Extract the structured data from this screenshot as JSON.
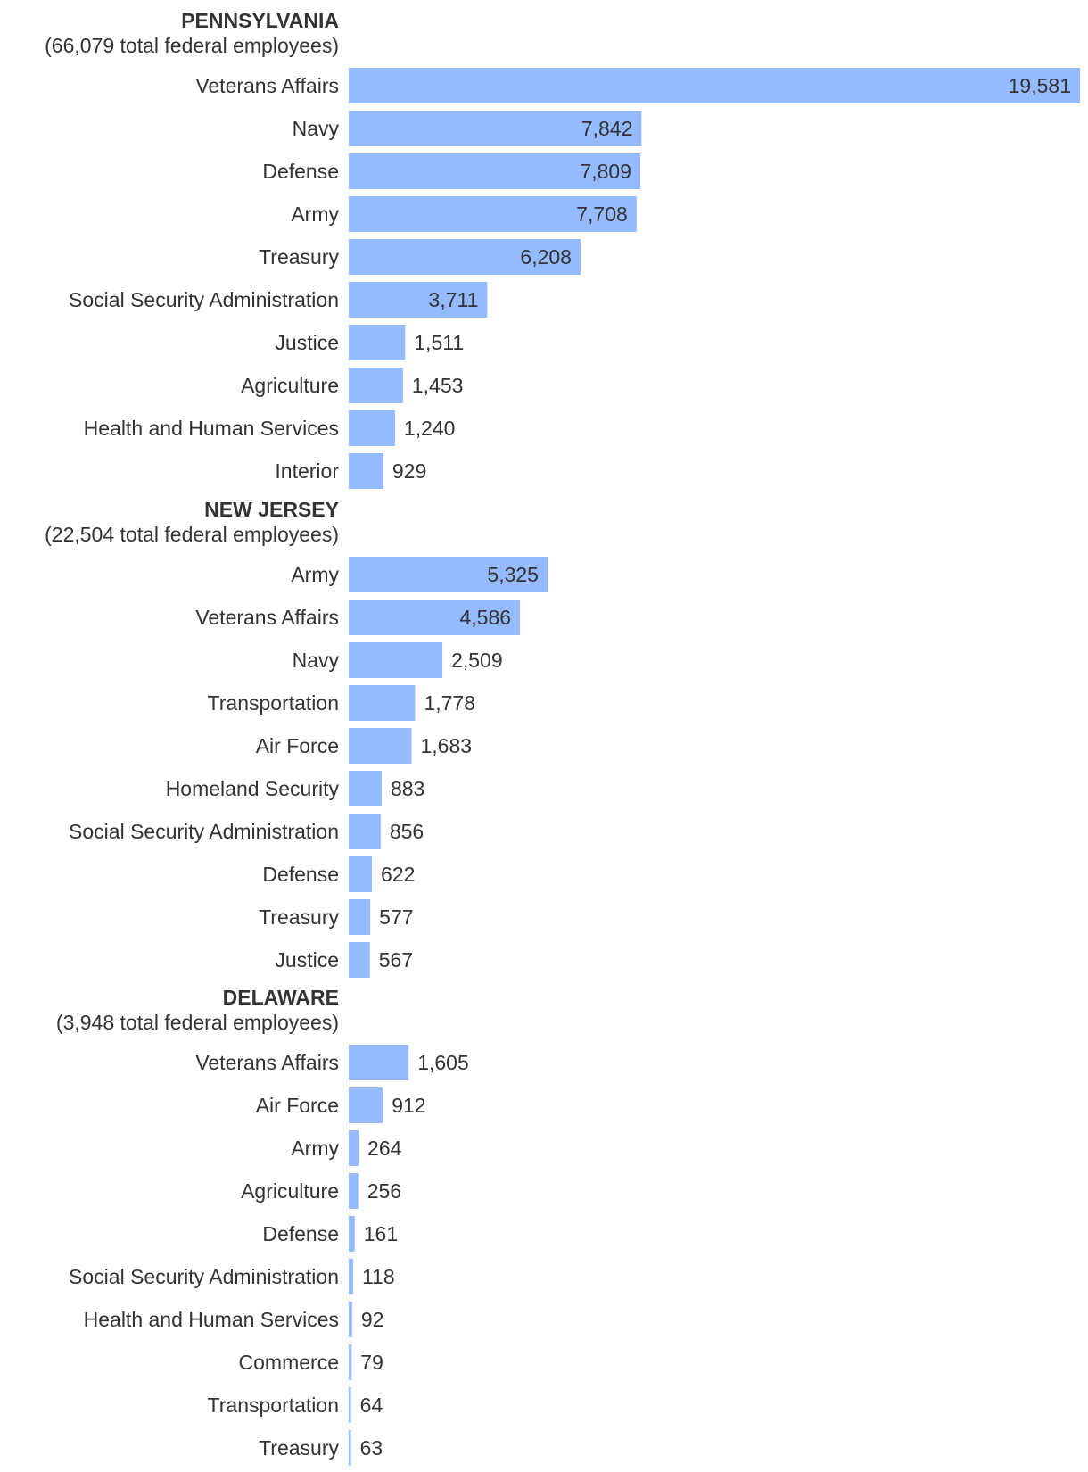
{
  "colors": {
    "bar": "#94baff",
    "text": "#333333"
  },
  "chart_data": [
    {
      "type": "bar",
      "orientation": "horizontal",
      "title": "PENNSYLVANIA",
      "subtitle": "(66,079 total federal employees)",
      "categories": [
        "Veterans Affairs",
        "Navy",
        "Defense",
        "Army",
        "Treasury",
        "Social Security Administration",
        "Justice",
        "Agriculture",
        "Health and Human Services",
        "Interior"
      ],
      "values": [
        19581,
        7842,
        7809,
        7708,
        6208,
        3711,
        1511,
        1453,
        1240,
        929
      ],
      "value_labels": [
        "19,581",
        "7,842",
        "7,809",
        "7,708",
        "6,208",
        "3,711",
        "1,511",
        "1,453",
        "1,240",
        "929"
      ],
      "xlim": [
        0,
        19581
      ]
    },
    {
      "type": "bar",
      "orientation": "horizontal",
      "title": "NEW JERSEY",
      "subtitle": "(22,504 total federal employees)",
      "categories": [
        "Army",
        "Veterans Affairs",
        "Navy",
        "Transportation",
        "Air Force",
        "Homeland Security",
        "Social Security Administration",
        "Defense",
        "Treasury",
        "Justice"
      ],
      "values": [
        5325,
        4586,
        2509,
        1778,
        1683,
        883,
        856,
        622,
        577,
        567
      ],
      "value_labels": [
        "5,325",
        "4,586",
        "2,509",
        "1,778",
        "1,683",
        "883",
        "856",
        "622",
        "577",
        "567"
      ],
      "xlim": [
        0,
        19581
      ]
    },
    {
      "type": "bar",
      "orientation": "horizontal",
      "title": "DELAWARE",
      "subtitle": "(3,948 total federal employees)",
      "categories": [
        "Veterans Affairs",
        "Air Force",
        "Army",
        "Agriculture",
        "Defense",
        "Social Security Administration",
        "Health and Human Services",
        "Commerce",
        "Transportation",
        "Treasury"
      ],
      "values": [
        1605,
        912,
        264,
        256,
        161,
        118,
        92,
        79,
        64,
        63
      ],
      "value_labels": [
        "1,605",
        "912",
        "264",
        "256",
        "161",
        "118",
        "92",
        "79",
        "64",
        "63"
      ],
      "xlim": [
        0,
        19581
      ]
    }
  ]
}
